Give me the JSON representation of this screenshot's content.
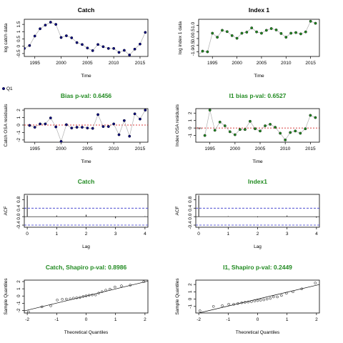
{
  "colors": {
    "accent_green": "#228b22",
    "fit_blue": "#3333cc",
    "zero_red": "#cc0000",
    "point_fill": "#000080"
  },
  "legend": {
    "symbol": "filled-circle",
    "label": "Q1"
  },
  "chart_data": [
    {
      "id": "catch_series",
      "type": "line+scatter",
      "title": "Catch",
      "title_color": "black",
      "xlabel": "Time",
      "ylabel": "log catch data",
      "xlim": [
        1993,
        2016.5
      ],
      "ylim": [
        -0.7,
        1.85
      ],
      "xticks": [
        1995,
        2000,
        2005,
        2010,
        2015
      ],
      "yticks": [
        -0.5,
        0,
        0.5,
        1,
        1.5
      ],
      "yticklabels": [
        "-0.5",
        "0",
        "0.5",
        "1",
        "1.5"
      ],
      "x": [
        1993,
        1994,
        1995,
        1996,
        1997,
        1998,
        1999,
        2000,
        2001,
        2002,
        2003,
        2004,
        2005,
        2006,
        2007,
        2008,
        2009,
        2010,
        2011,
        2012,
        2013,
        2014,
        2015,
        2016
      ],
      "y": [
        -0.15,
        0.05,
        0.7,
        1.2,
        1.45,
        1.65,
        1.5,
        0.6,
        0.72,
        0.58,
        0.25,
        0.12,
        -0.12,
        -0.3,
        0.12,
        -0.03,
        -0.15,
        -0.15,
        -0.42,
        -0.28,
        -0.6,
        -0.2,
        0.15,
        0.95
      ],
      "grid": false
    },
    {
      "id": "index_series",
      "type": "line+scatter",
      "title": "Index 1",
      "title_color": "black",
      "xlabel": "Time",
      "ylabel": "log index 1 data",
      "xlim": [
        1992.2,
        2016.8
      ],
      "ylim": [
        -1.35,
        1.45
      ],
      "xticks": [
        1995,
        2000,
        2005,
        2010,
        2015
      ],
      "yticks": [
        -1,
        -0.5,
        0,
        0.5,
        1
      ],
      "yticklabels": [
        "-1.0",
        "-0.5",
        "0.0",
        "0.5",
        "1.0"
      ],
      "x": [
        1992,
        1993,
        1994,
        1995,
        1996,
        1997,
        1998,
        1999,
        2000,
        2001,
        2002,
        2003,
        2004,
        2005,
        2006,
        2007,
        2008,
        2009,
        2010,
        2011,
        2012,
        2013,
        2014,
        2015,
        2016
      ],
      "y": [
        -1.3,
        -0.95,
        -1.0,
        0.4,
        0.1,
        0.62,
        0.52,
        0.22,
        0.02,
        0.4,
        0.48,
        0.8,
        0.5,
        0.4,
        0.62,
        0.75,
        0.65,
        0.38,
        0.1,
        0.4,
        0.45,
        0.35,
        0.5,
        1.3,
        1.15
      ],
      "grid": false
    },
    {
      "id": "catch_osa",
      "type": "line+scatter",
      "title": "Bias p-val: 0.6456",
      "title_color": "green",
      "xlabel": "Time",
      "ylabel": "Catch OSA residuals",
      "xlim": [
        1993,
        2016.5
      ],
      "ylim": [
        -2.3,
        2.2
      ],
      "xticks": [
        1995,
        2000,
        2005,
        2010,
        2015
      ],
      "yticks": [
        -2,
        -1,
        0,
        1,
        2
      ],
      "yticklabels": [
        "-2",
        "-1",
        "0",
        "1",
        "2"
      ],
      "x": [
        1994,
        1995,
        1996,
        1997,
        1998,
        1999,
        2000,
        2001,
        2002,
        2003,
        2004,
        2005,
        2006,
        2007,
        2008,
        2009,
        2010,
        2011,
        2012,
        2013,
        2014,
        2015,
        2016
      ],
      "y": [
        -0.05,
        -0.3,
        0.15,
        0.15,
        0.95,
        -0.25,
        -2.2,
        0.05,
        -0.4,
        -0.3,
        -0.3,
        -0.4,
        -0.45,
        1.4,
        -0.2,
        -0.2,
        0.15,
        -1.3,
        0.6,
        -1.5,
        1.5,
        0.8,
        2.0
      ],
      "reference_line": 0,
      "grid": false
    },
    {
      "id": "index_osa",
      "type": "line+scatter",
      "title": "I1 bias p-val: 0.6527",
      "title_color": "green",
      "xlabel": "Time",
      "ylabel": "Index OSA residuals",
      "xlim": [
        1992.2,
        2016.8
      ],
      "ylim": [
        -1.9,
        2.6
      ],
      "xticks": [
        1995,
        2000,
        2005,
        2010,
        2015
      ],
      "yticks": [
        -1,
        0,
        1,
        2
      ],
      "yticklabels": [
        "-1",
        "0",
        "1",
        "2"
      ],
      "x": [
        1994,
        1995,
        1996,
        1997,
        1998,
        1999,
        2000,
        2001,
        2002,
        2003,
        2004,
        2005,
        2006,
        2007,
        2008,
        2009,
        2010,
        2011,
        2012,
        2013,
        2014,
        2015,
        2016
      ],
      "y": [
        -1.0,
        2.4,
        -0.3,
        0.8,
        0.3,
        -0.5,
        -0.9,
        -0.2,
        -0.2,
        0.9,
        -0.1,
        -0.4,
        0.3,
        0.5,
        0.1,
        -0.7,
        -1.6,
        -0.6,
        -0.4,
        -0.7,
        -0.1,
        1.7,
        1.4
      ],
      "na_marker": "NA",
      "reference_line": 0,
      "grid": false
    },
    {
      "id": "catch_acf",
      "type": "acf",
      "title": "Catch",
      "title_color": "green",
      "xlabel": "Lag",
      "ylabel": "ACF",
      "xlim": [
        -0.1,
        4.1
      ],
      "ylim": [
        -0.5,
        1.05
      ],
      "xticks": [
        0,
        1,
        2,
        3,
        4
      ],
      "yticks": [
        -0.4,
        0,
        0.4,
        0.8
      ],
      "yticklabels": [
        "-0.4",
        "0.0",
        "0.4",
        "0.8"
      ],
      "lags": [
        0,
        1,
        2,
        3,
        4
      ],
      "acf": [
        1.0,
        0.05,
        0.09,
        -0.08,
        0.02
      ],
      "confidence_band": 0.4,
      "grid": false
    },
    {
      "id": "index_acf",
      "type": "acf",
      "title": "Index1",
      "title_color": "green",
      "xlabel": "Lag",
      "ylabel": "ACF",
      "xlim": [
        -0.1,
        4.1
      ],
      "ylim": [
        -0.5,
        1.05
      ],
      "xticks": [
        0,
        1,
        2,
        3,
        4
      ],
      "yticks": [
        -0.4,
        0,
        0.4,
        0.8
      ],
      "yticklabels": [
        "-0.4",
        "0.0",
        "0.4",
        "0.8"
      ],
      "lags": [
        0,
        1,
        2,
        3,
        4
      ],
      "acf": [
        1.0,
        0.02,
        -0.03,
        0.05,
        -0.05
      ],
      "confidence_band": 0.4,
      "grid": false
    },
    {
      "id": "catch_qq",
      "type": "scatter",
      "title": "Catch, Shapiro p-val: 0.8986",
      "title_color": "green",
      "xlabel": "Theoretical Quantiles",
      "ylabel": "Sample Quantiles",
      "xlim": [
        -2.1,
        2.1
      ],
      "ylim": [
        -2.35,
        2.2
      ],
      "xticks": [
        -2,
        -1,
        0,
        1,
        2
      ],
      "yticks": [
        -2,
        -1,
        0,
        1,
        2
      ],
      "yticklabels": [
        "-2",
        "-1",
        "0",
        "1",
        "2"
      ],
      "x": [
        -1.96,
        -1.5,
        -1.2,
        -0.98,
        -0.81,
        -0.67,
        -0.54,
        -0.43,
        -0.32,
        -0.21,
        -0.1,
        0.0,
        0.1,
        0.21,
        0.32,
        0.43,
        0.54,
        0.67,
        0.81,
        0.98,
        1.2,
        1.5,
        1.96
      ],
      "y": [
        -2.2,
        -1.5,
        -1.35,
        -0.55,
        -0.45,
        -0.42,
        -0.4,
        -0.3,
        -0.25,
        -0.2,
        -0.05,
        0.02,
        0.1,
        0.15,
        0.15,
        0.4,
        0.6,
        0.8,
        0.95,
        1.25,
        1.4,
        1.5,
        2.0
      ],
      "fit_line": {
        "slope": 0.98,
        "intercept": 0.0
      },
      "grid": false
    },
    {
      "id": "index_qq",
      "type": "scatter",
      "title": "I1, Shapiro p-val: 0.2449",
      "title_color": "green",
      "xlabel": "Theoretical Quantiles",
      "ylabel": "Sample Quantiles",
      "xlim": [
        -2.1,
        2.1
      ],
      "ylim": [
        -1.9,
        2.6
      ],
      "xticks": [
        -2,
        -1,
        0,
        1,
        2
      ],
      "yticks": [
        -1,
        0,
        1,
        2
      ],
      "yticklabels": [
        "-1",
        "0",
        "1",
        "2"
      ],
      "x": [
        -1.96,
        -1.5,
        -1.2,
        -0.98,
        -0.81,
        -0.67,
        -0.54,
        -0.43,
        -0.32,
        -0.21,
        -0.1,
        0.0,
        0.1,
        0.21,
        0.32,
        0.43,
        0.54,
        0.67,
        0.81,
        0.98,
        1.2,
        1.5,
        1.96
      ],
      "y": [
        -1.6,
        -1.0,
        -0.9,
        -0.7,
        -0.7,
        -0.6,
        -0.5,
        -0.45,
        -0.4,
        -0.35,
        -0.25,
        -0.2,
        -0.15,
        -0.1,
        0.0,
        0.1,
        0.3,
        0.3,
        0.5,
        0.8,
        1.0,
        1.4,
        2.2
      ],
      "fit_line": {
        "slope": 0.95,
        "intercept": 0.0
      },
      "grid": false
    }
  ]
}
